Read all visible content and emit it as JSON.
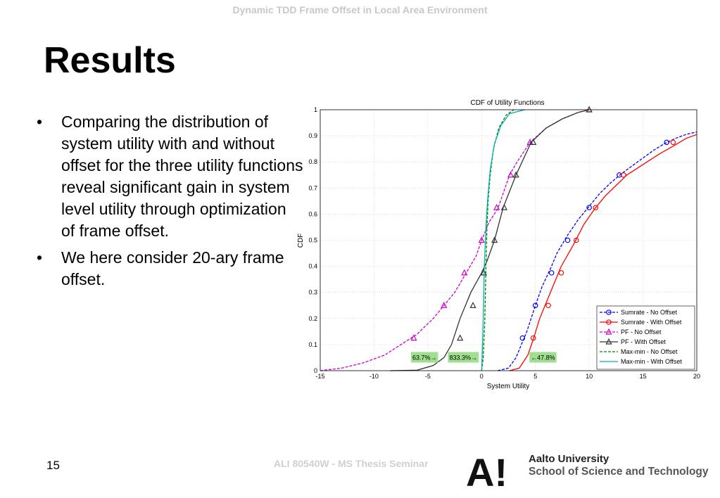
{
  "header": {
    "title": "Dynamic TDD Frame Offset in Local Area Environment"
  },
  "slide": {
    "title": "Results",
    "bullets": [
      "Comparing the distribution of system utility with and without offset for the three utility functions reveal significant gain in system level utility through optimization of frame offset.",
      "We here consider 20-ary frame offset."
    ],
    "bullet_glyph": "•"
  },
  "footer": {
    "page_number": "15",
    "course": "ALI 80540W - MS Thesis Seminar",
    "university": "Aalto University",
    "school": "School of Science and Technology",
    "logo_letters": "A!"
  },
  "chart_data": {
    "type": "line",
    "title": "CDF of Utility Functions",
    "xlabel": "System Utility",
    "ylabel": "CDF",
    "xlim": [
      -15,
      20
    ],
    "ylim": [
      0,
      1
    ],
    "xticks": [
      -15,
      -10,
      -5,
      0,
      5,
      10,
      15,
      20
    ],
    "yticks": [
      0,
      0.1,
      0.2,
      0.3,
      0.4,
      0.5,
      0.6,
      0.7,
      0.8,
      0.9,
      1
    ],
    "grid": true,
    "legend_position": "bottom-right",
    "series": [
      {
        "name": "Sumrate - No Offset",
        "color": "#0000ff",
        "dash": "dashed",
        "marker": "circle",
        "points": [
          [
            1.5,
            0
          ],
          [
            2.5,
            0.01
          ],
          [
            3.2,
            0.05
          ],
          [
            3.7,
            0.1
          ],
          [
            4.2,
            0.15
          ],
          [
            5,
            0.25
          ],
          [
            5.6,
            0.32
          ],
          [
            6.5,
            0.4
          ],
          [
            7,
            0.45
          ],
          [
            8,
            0.52
          ],
          [
            9,
            0.58
          ],
          [
            10,
            0.63
          ],
          [
            11,
            0.68
          ],
          [
            12,
            0.72
          ],
          [
            13,
            0.755
          ],
          [
            14.5,
            0.8
          ],
          [
            16,
            0.845
          ],
          [
            17,
            0.87
          ],
          [
            18,
            0.89
          ],
          [
            19,
            0.905
          ],
          [
            20,
            0.915
          ]
        ],
        "marker_points": [
          [
            3.8,
            0.125
          ],
          [
            5,
            0.25
          ],
          [
            6.5,
            0.375
          ],
          [
            8,
            0.5
          ],
          [
            10,
            0.625
          ],
          [
            12.8,
            0.75
          ],
          [
            17.2,
            0.875
          ]
        ]
      },
      {
        "name": "Sumrate - With Offset",
        "color": "#ff0000",
        "dash": "solid",
        "marker": "circle",
        "points": [
          [
            2.6,
            0
          ],
          [
            3.5,
            0.01
          ],
          [
            4.3,
            0.06
          ],
          [
            4.8,
            0.12
          ],
          [
            5.4,
            0.2
          ],
          [
            6,
            0.26
          ],
          [
            6.8,
            0.34
          ],
          [
            7.4,
            0.4
          ],
          [
            8.5,
            0.48
          ],
          [
            9.5,
            0.56
          ],
          [
            10.5,
            0.62
          ],
          [
            11.5,
            0.67
          ],
          [
            12.5,
            0.71
          ],
          [
            13.5,
            0.75
          ],
          [
            15,
            0.79
          ],
          [
            16.5,
            0.83
          ],
          [
            18,
            0.865
          ],
          [
            19,
            0.89
          ],
          [
            20,
            0.905
          ]
        ],
        "marker_points": [
          [
            4.8,
            0.125
          ],
          [
            6.2,
            0.25
          ],
          [
            7.4,
            0.375
          ],
          [
            8.8,
            0.5
          ],
          [
            10.6,
            0.625
          ],
          [
            13.2,
            0.75
          ],
          [
            17.8,
            0.875
          ]
        ]
      },
      {
        "name": "PF - No Offset",
        "color": "#cc00cc",
        "dash": "dashed",
        "marker": "triangle",
        "points": [
          [
            -15,
            0
          ],
          [
            -13,
            0.01
          ],
          [
            -11,
            0.03
          ],
          [
            -9,
            0.06
          ],
          [
            -7.5,
            0.1
          ],
          [
            -6,
            0.14
          ],
          [
            -4.5,
            0.2
          ],
          [
            -3.5,
            0.25
          ],
          [
            -2.5,
            0.3
          ],
          [
            -1.5,
            0.37
          ],
          [
            -0.5,
            0.44
          ],
          [
            0,
            0.5
          ],
          [
            0.7,
            0.57
          ],
          [
            1.5,
            0.62
          ],
          [
            2.6,
            0.75
          ],
          [
            3.3,
            0.8
          ],
          [
            4.5,
            0.875
          ],
          [
            6,
            0.93
          ],
          [
            7.5,
            0.965
          ],
          [
            9,
            0.99
          ],
          [
            10,
            1
          ]
        ],
        "marker_points": [
          [
            -6.3,
            0.125
          ],
          [
            -3.5,
            0.25
          ],
          [
            -1.6,
            0.375
          ],
          [
            0,
            0.5
          ],
          [
            1.4,
            0.625
          ],
          [
            2.7,
            0.75
          ],
          [
            4.5,
            0.875
          ],
          [
            10,
            1
          ]
        ]
      },
      {
        "name": "PF - With Offset",
        "color": "#333333",
        "dash": "solid",
        "marker": "triangle",
        "points": [
          [
            -8.5,
            0
          ],
          [
            -6,
            0.002
          ],
          [
            -4.5,
            0.02
          ],
          [
            -3.5,
            0.05
          ],
          [
            -2.8,
            0.1
          ],
          [
            -2,
            0.2
          ],
          [
            -1,
            0.3
          ],
          [
            0,
            0.375
          ],
          [
            0.5,
            0.42
          ],
          [
            1.2,
            0.5
          ],
          [
            2,
            0.625
          ],
          [
            3.2,
            0.75
          ],
          [
            4.6,
            0.875
          ],
          [
            6,
            0.93
          ],
          [
            7.5,
            0.965
          ],
          [
            9,
            0.99
          ],
          [
            10,
            1
          ]
        ],
        "marker_points": [
          [
            -2,
            0.125
          ],
          [
            -0.8,
            0.25
          ],
          [
            0.2,
            0.375
          ],
          [
            1.2,
            0.5
          ],
          [
            2.1,
            0.625
          ],
          [
            3.2,
            0.75
          ],
          [
            4.8,
            0.875
          ],
          [
            10,
            1
          ]
        ]
      },
      {
        "name": "Max-min - No Offset",
        "color": "#008000",
        "dash": "dashed",
        "marker": "none",
        "points": [
          [
            0,
            0
          ],
          [
            0.15,
            0.05
          ],
          [
            0.3,
            0.2
          ],
          [
            0.4,
            0.4
          ],
          [
            0.5,
            0.55
          ],
          [
            0.6,
            0.65
          ],
          [
            0.8,
            0.75
          ],
          [
            1.1,
            0.85
          ],
          [
            1.6,
            0.93
          ],
          [
            2.3,
            0.98
          ],
          [
            3,
            1
          ]
        ]
      },
      {
        "name": "Max-min - With Offset",
        "color": "#00b0b0",
        "dash": "solid",
        "marker": "none",
        "points": [
          [
            0,
            0
          ],
          [
            0.05,
            0.05
          ],
          [
            0.15,
            0.2
          ],
          [
            0.25,
            0.4
          ],
          [
            0.4,
            0.55
          ],
          [
            0.55,
            0.65
          ],
          [
            0.8,
            0.77
          ],
          [
            1.2,
            0.87
          ],
          [
            1.8,
            0.94
          ],
          [
            2.6,
            0.985
          ],
          [
            4,
            1
          ]
        ]
      }
    ],
    "annotations": [
      {
        "text": "63.7%→",
        "x": -5.3,
        "y": 0.05
      },
      {
        "text": "833.3%→",
        "x": -1.7,
        "y": 0.05
      },
      {
        "text": "←47.8%",
        "x": 5.7,
        "y": 0.05
      }
    ]
  }
}
